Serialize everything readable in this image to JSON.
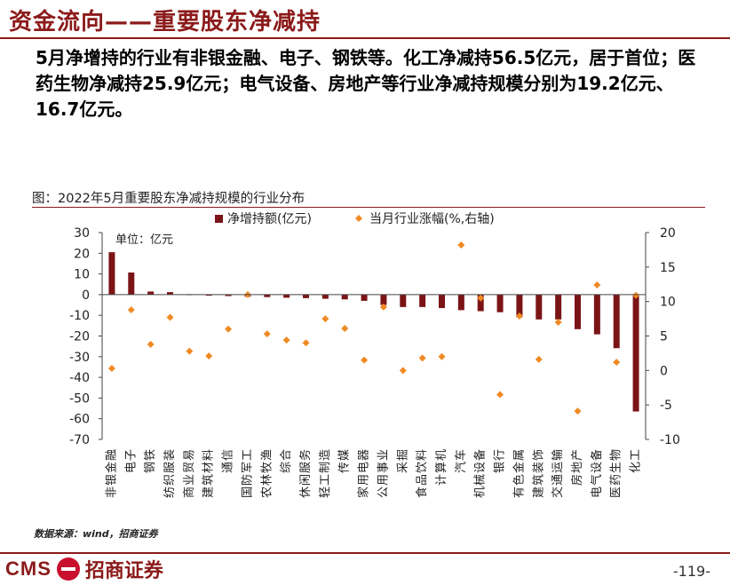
{
  "header": {
    "title": "资金流向——重要股东净减持",
    "summary": "5月净增持的行业有非银金融、电子、钢铁等。化工净减持56.5亿元，居于首位；医药生物净减持25.9亿元；电气设备、房地产等行业净减持规模分别为19.2亿元、16.7亿元。"
  },
  "figure": {
    "caption": "图：2022年5月重要股东净减持规模的行业分布",
    "unit_label": "单位：亿元"
  },
  "chart_data": {
    "type": "bar",
    "categories": [
      "非银金融",
      "电子",
      "钢铁",
      "纺织服装",
      "商业贸易",
      "建筑材料",
      "通信",
      "国防军工",
      "农林牧渔",
      "综合",
      "休闲服务",
      "轻工制造",
      "传媒",
      "家用电器",
      "公用事业",
      "采掘",
      "食品饮料",
      "计算机",
      "汽车",
      "机械设备",
      "银行",
      "有色金属",
      "建筑装饰",
      "交通运输",
      "房地产",
      "电气设备",
      "医药生物",
      "化工"
    ],
    "series": [
      {
        "name": "净增持额(亿元)",
        "type": "bar",
        "axis": "left",
        "color": "#7b1416",
        "values": [
          20.5,
          10.7,
          1.5,
          1.2,
          0.2,
          -0.5,
          -0.7,
          -1.0,
          -1.2,
          -1.5,
          -1.7,
          -2.0,
          -2.3,
          -3.0,
          -5.0,
          -6.0,
          -6.0,
          -6.5,
          -7.5,
          -8.0,
          -8.5,
          -11.0,
          -12.0,
          -12.0,
          -16.7,
          -19.2,
          -25.9,
          -56.5
        ]
      },
      {
        "name": "当月行业涨幅(%,右轴)",
        "type": "scatter",
        "axis": "right",
        "color": "#f08a24",
        "values": [
          0.3,
          8.8,
          3.8,
          7.7,
          2.8,
          2.1,
          6.0,
          11.0,
          5.3,
          4.4,
          4.0,
          7.5,
          6.1,
          1.5,
          9.2,
          0.0,
          1.8,
          2.0,
          18.2,
          10.5,
          -3.5,
          7.9,
          1.6,
          7.0,
          -5.9,
          12.4,
          1.2,
          10.9
        ]
      }
    ],
    "y_left": {
      "min": -70,
      "max": 30,
      "step": 10
    },
    "y_right": {
      "min": -10,
      "max": 20,
      "step": 5
    },
    "legend_position": "top-center"
  },
  "footer": {
    "source": "数据来源：wind，招商证券",
    "logo_text": "CMS",
    "logo_cn": "招商证券",
    "page_number": "-119-"
  }
}
